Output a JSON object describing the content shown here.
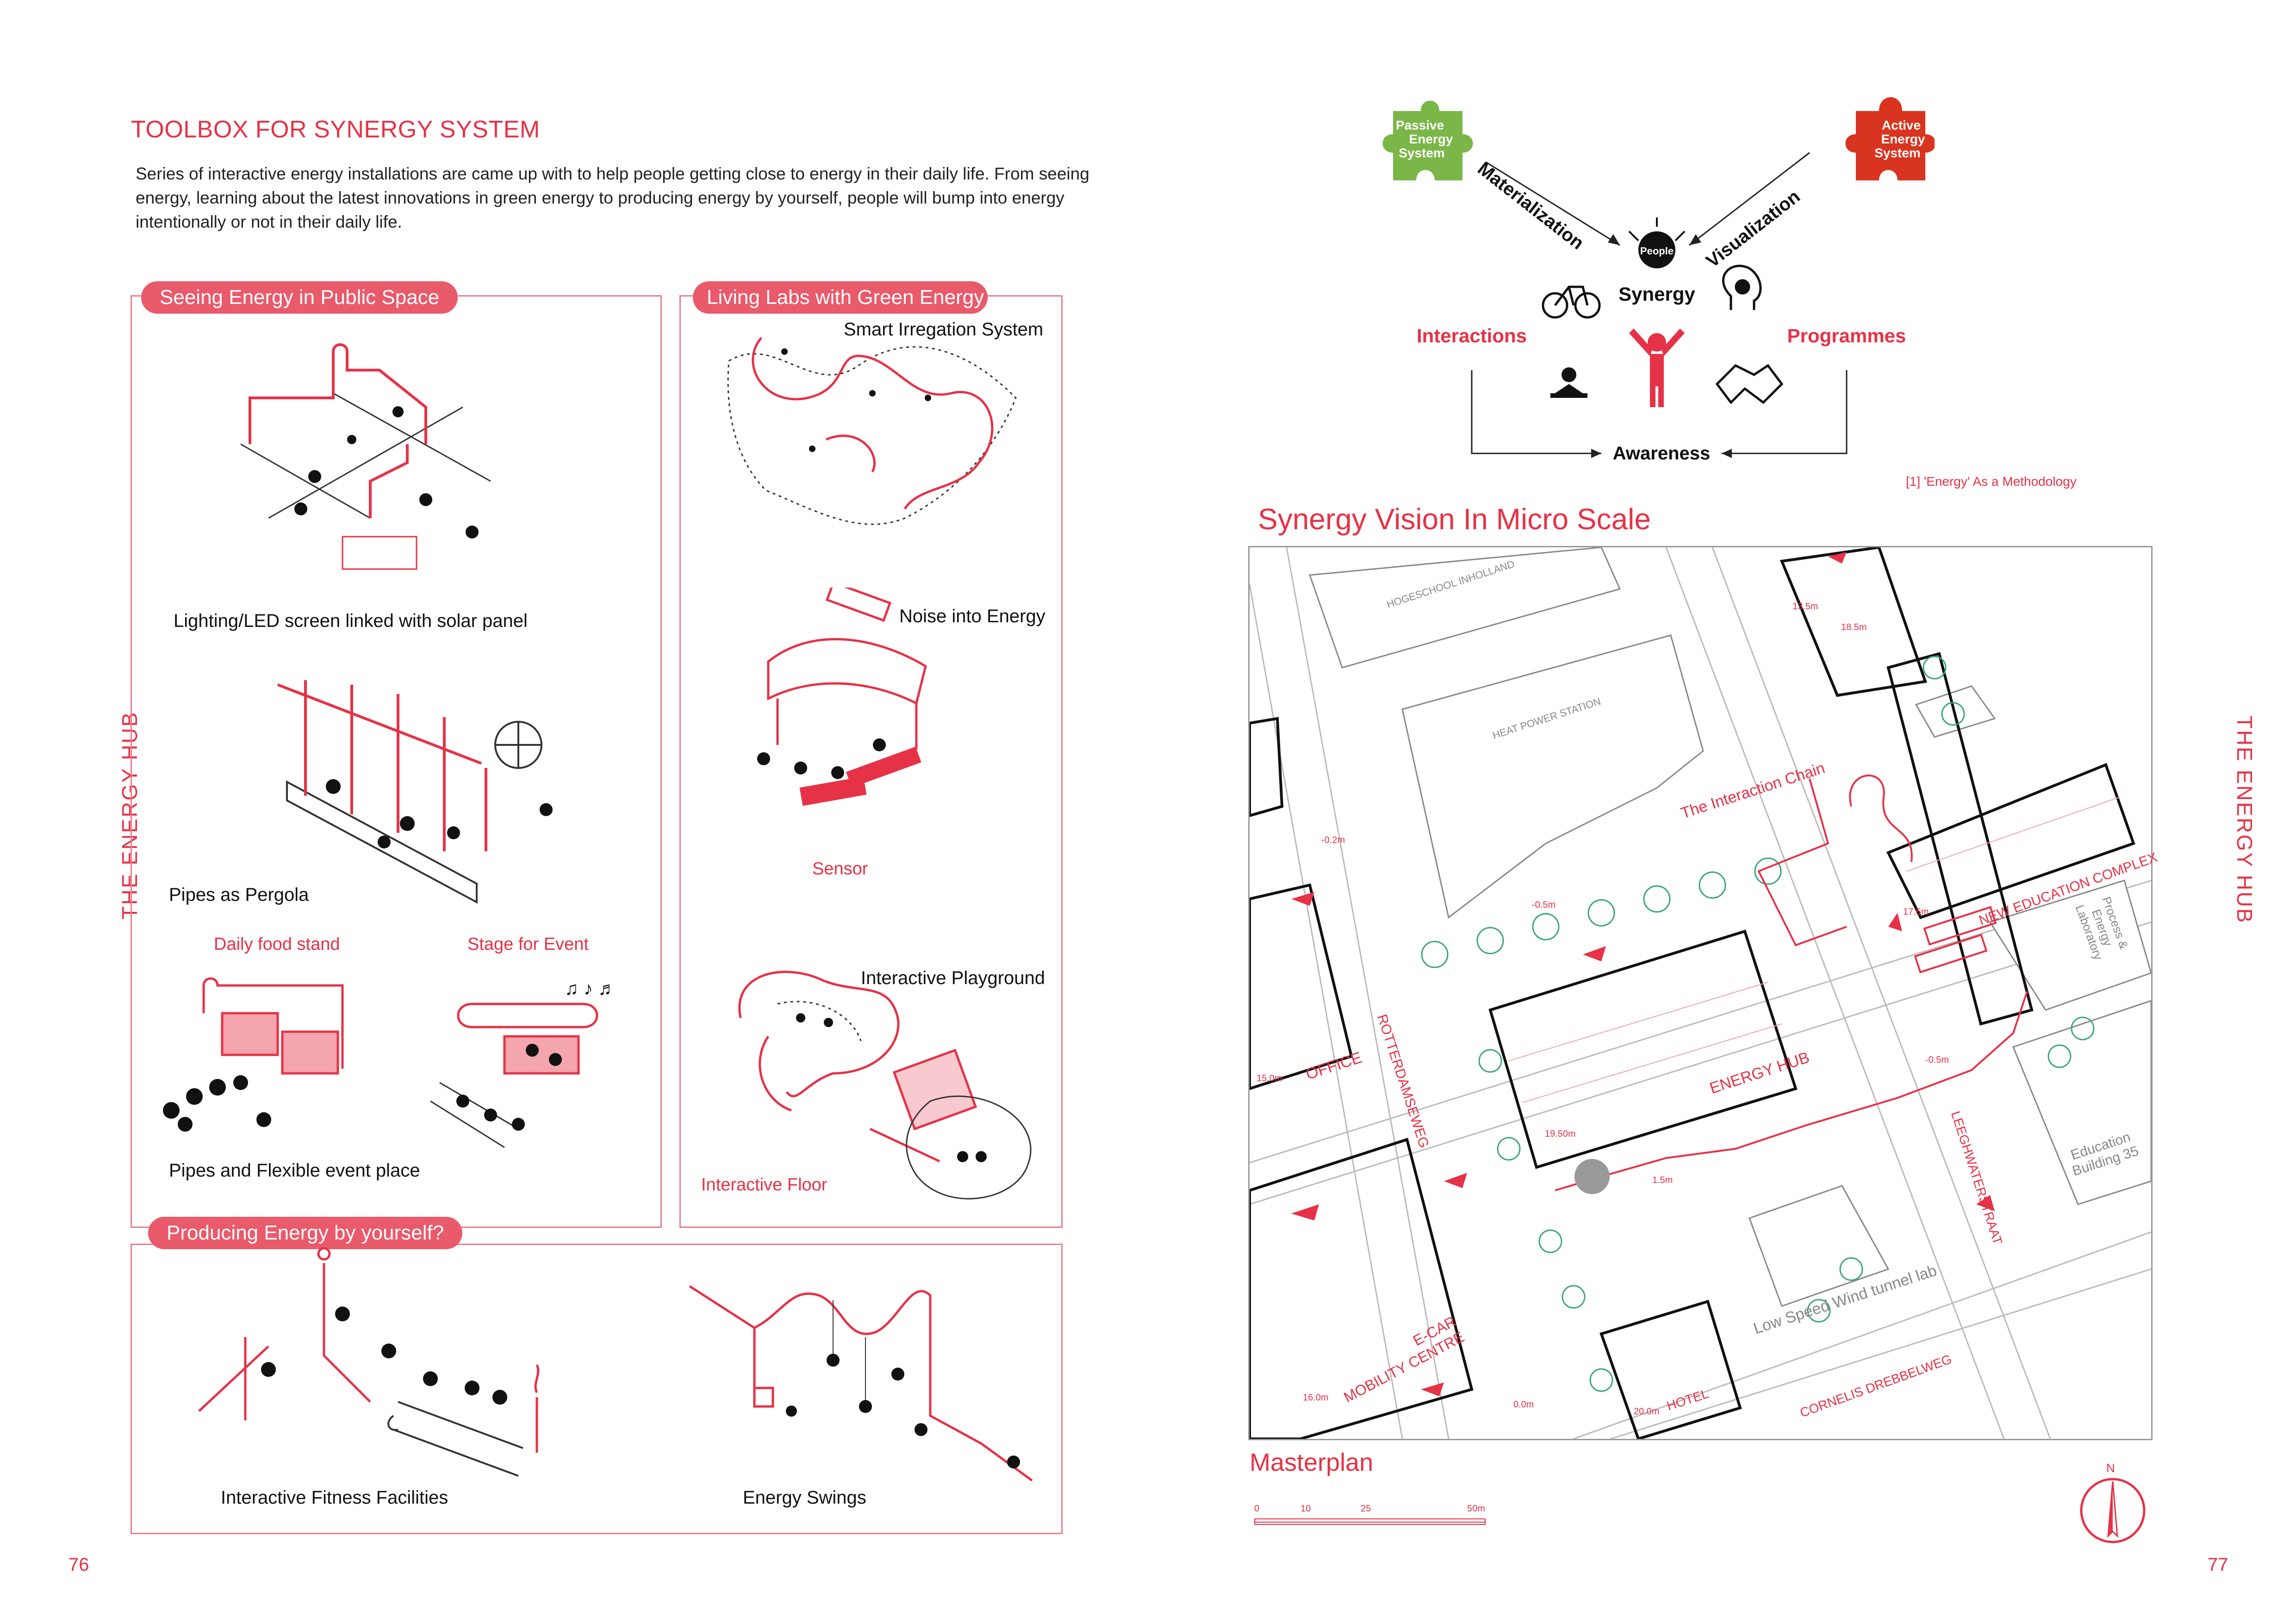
{
  "left_page": {
    "title": "TOOLBOX FOR SYNERGY SYSTEM",
    "intro": "Series of interactive energy installations are came up with to help people getting close to energy in their daily life. From seeing energy, learning about the latest innovations in green energy to producing energy by yourself, people will bump into energy intentionally or not in their daily life.",
    "side_label": "THE ENERGY HUB",
    "page_number": "76",
    "sections": {
      "seeing": {
        "title": "Seeing Energy in Public Space",
        "items": [
          "Lighting/LED screen linked with solar panel",
          "Pipes as Pergola",
          "Pipes and Flexible event place"
        ],
        "sub_labels": [
          "Daily food stand",
          "Stage for Event"
        ]
      },
      "living": {
        "title": "Living Labs with Green Energy",
        "items": [
          "Smart Irregation System",
          "Noise into Energy",
          "Interactive Playground"
        ],
        "red_labels": [
          "Sensor",
          "Interactive Floor"
        ]
      },
      "producing": {
        "title": "Producing Energy by yourself?",
        "items": [
          "Interactive Fitness Facilities",
          "Energy Swings"
        ]
      }
    }
  },
  "right_page": {
    "side_label": "THE ENERGY HUB",
    "page_number": "77",
    "diagram": {
      "passive": [
        "Passive",
        "Energy",
        "System"
      ],
      "active": [
        "Active",
        "Energy",
        "System"
      ],
      "materialization": "Materialization",
      "visualization": "Visualization",
      "people": "People",
      "synergy": "Synergy",
      "interactions": "Interactions",
      "programmes": "Programmes",
      "awareness": "Awareness",
      "caption": "[1] 'Energy' As a Methodology"
    },
    "vision_title": "Synergy Vision In Micro Scale",
    "map": {
      "buildings": {
        "hogeschool": "HOGESCHOOL INHOLLAND",
        "heat_power": "HEAT POWER STATION",
        "office": "OFFICE",
        "energy_hub": "ENERGY HUB",
        "new_education": "NEW EDUCATION COMPLEX",
        "process_lab": [
          "Process &",
          "Energy",
          "Laboratory"
        ],
        "education_35": [
          "Education",
          "Building 35"
        ],
        "wind_tunnel": "Low Speed Wind tunnel lab",
        "hotel": "HOTEL",
        "ecar": [
          "E-CAR",
          "MOBILITY CENTRE"
        ]
      },
      "streets": {
        "rotterdamseweg": "ROTTERDAMSEWEG",
        "leeghwaterstraat": "LEEGHWATERSTRAAT",
        "cornelis": "CORNELIS DREBBELWEG"
      },
      "interaction_chain": "The Interaction Chain",
      "heights": [
        "13.5m",
        "18.5m",
        "-0.2m",
        "-0.5m",
        "-0.5m",
        "17.5m",
        "15.0m",
        "19.50m",
        "1.5m",
        "16.0m",
        "0.0m",
        "20.0m"
      ]
    },
    "masterplan_label": "Masterplan",
    "scale_ticks": [
      "0",
      "10",
      "25",
      "50m"
    ],
    "north": "N"
  },
  "colors": {
    "accent": "#e63246",
    "pill": "#e95a6b",
    "panel_border": "#e97f8c",
    "green": "#7ab648",
    "green_map": "#3aa57a",
    "active_red": "#d9341f"
  }
}
